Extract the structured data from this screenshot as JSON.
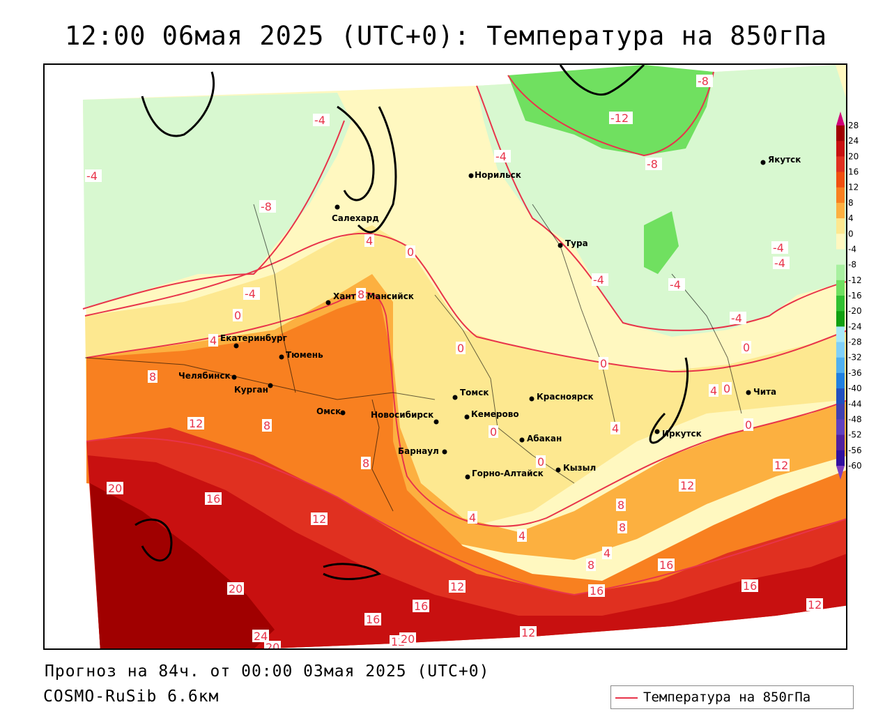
{
  "title": "12:00 06мая 2025 (UTC+0): Температура на 850гПа",
  "footer": {
    "forecast": "Прогноз на 84ч. от 00:00 03мая 2025 (UTC+0)",
    "model": "COSMO-RuSib 6.6км"
  },
  "legend": {
    "label": "Температура на 850гПа",
    "line_color": "#e8344a"
  },
  "colorbar": {
    "levels": [
      "28",
      "24",
      "20",
      "16",
      "12",
      "8",
      "4",
      "0",
      "-4",
      "-8",
      "-12",
      "-16",
      "-20",
      "-24",
      "-28",
      "-32",
      "-36",
      "-40",
      "-44",
      "-48",
      "-52",
      "-56",
      "-60"
    ],
    "colors": [
      "#d00078",
      "#a00000",
      "#c81010",
      "#e03020",
      "#f05010",
      "#f88020",
      "#fcb040",
      "#fde890",
      "#fff8c0",
      "#d8f8d0",
      "#a8f0a0",
      "#70e060",
      "#30c030",
      "#10a010",
      "#a8e8f8",
      "#80d0f8",
      "#50b0f0",
      "#2080e0",
      "#2050c0",
      "#4040b0",
      "#6040c0",
      "#5020a0",
      "#3010a0",
      "#5c0a8a"
    ],
    "top_arrow_color": "#d00078",
    "bottom_arrow_color": "#8040c0"
  },
  "cities": [
    {
      "name": "Салехард"
    },
    {
      "name": "Норильск"
    },
    {
      "name": "Якутск"
    },
    {
      "name": "Тура"
    },
    {
      "name": "Ханты-Мансийск"
    },
    {
      "name": "Екатеринбург"
    },
    {
      "name": "Тюмень"
    },
    {
      "name": "Челябинск"
    },
    {
      "name": "Курган"
    },
    {
      "name": "Омск"
    },
    {
      "name": "Новосибирск"
    },
    {
      "name": "Томск"
    },
    {
      "name": "Красноярск"
    },
    {
      "name": "Кемерово"
    },
    {
      "name": "Абакан"
    },
    {
      "name": "Барнаул"
    },
    {
      "name": "Горно-Алтайск"
    },
    {
      "name": "Кызыл"
    },
    {
      "name": "Иркутск"
    },
    {
      "name": "Чита"
    }
  ],
  "isoline_labels": [
    "-8",
    "-12",
    "-4",
    "-8",
    "-4",
    "-8",
    "-4",
    "-4",
    "-4",
    "-4",
    "-4",
    "4",
    "0",
    "8",
    "-4",
    "0",
    "4",
    "0",
    "0",
    "0",
    "0",
    "-4",
    "8",
    "12",
    "8",
    "4",
    "0",
    "0",
    "4",
    "8",
    "0",
    "0",
    "12",
    "12",
    "20",
    "16",
    "12",
    "8",
    "4",
    "4",
    "8",
    "4",
    "8",
    "16",
    "20",
    "12",
    "16",
    "16",
    "12",
    "16",
    "12",
    "16",
    "24",
    "20",
    "12",
    "20",
    "16"
  ],
  "map": {
    "projection_note": "",
    "palette": {
      "cold_green": "#d8f8d0",
      "mid_green": "#a8f0a0",
      "dark_green": "#70e060",
      "pale_yellow": "#fff8c0",
      "yellow": "#fde890",
      "light_orange": "#fcb040",
      "orange": "#f88020",
      "deep_orange": "#f05010",
      "red": "#e03020",
      "dark_red": "#c81010",
      "darkest_red": "#a00000",
      "coast": "#000000",
      "border": "#000000",
      "contour": "#e8344a"
    }
  }
}
